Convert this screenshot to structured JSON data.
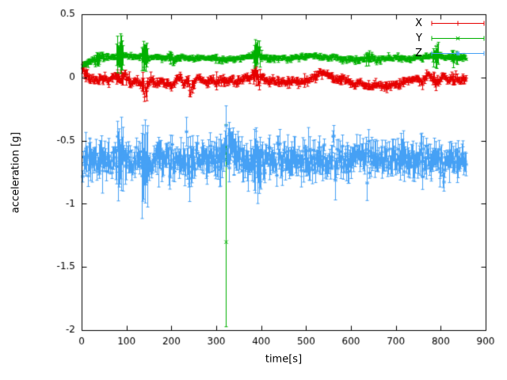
{
  "chart_data": {
    "type": "scatter",
    "style": "points-with-errorbars",
    "title": "",
    "xlabel": "time[s]",
    "ylabel": "acceleration [g]",
    "xlim": [
      0,
      900
    ],
    "ylim": [
      -2,
      0.5
    ],
    "xticks": [
      0,
      100,
      200,
      300,
      400,
      500,
      600,
      700,
      800,
      900
    ],
    "xtick_labels": [
      "0",
      "100",
      "200",
      "300",
      "400",
      "500",
      "600",
      "700",
      "800",
      "900"
    ],
    "yticks": [
      0.5,
      0,
      -0.5,
      -1,
      -1.5,
      -2
    ],
    "ytick_labels": [
      "0.5",
      "0",
      "-0.5",
      "-1",
      "-1.5",
      "-2"
    ],
    "grid": false,
    "legend_position": "top-right",
    "background": "#ffffff",
    "axis_color": "#000000",
    "sample": {
      "t_start": 2,
      "t_end": 856,
      "dt": 1.5
    },
    "series": [
      {
        "name": "X",
        "color": "#e60000",
        "marker": "plus",
        "seed": 11,
        "noise_sd": 0.012,
        "err": 0.018,
        "trend": [
          [
            0,
            0.1
          ],
          [
            6,
            0.05
          ],
          [
            12,
            0.01
          ],
          [
            20,
            -0.01
          ],
          [
            30,
            -0.02
          ],
          [
            45,
            0.0
          ],
          [
            60,
            -0.02
          ],
          [
            75,
            0.01
          ],
          [
            85,
            -0.01
          ],
          [
            95,
            0.02
          ],
          [
            105,
            -0.02
          ],
          [
            115,
            -0.04
          ],
          [
            125,
            -0.02
          ],
          [
            135,
            -0.06
          ],
          [
            140,
            -0.12
          ],
          [
            147,
            -0.05
          ],
          [
            155,
            -0.02
          ],
          [
            165,
            -0.04
          ],
          [
            175,
            -0.02
          ],
          [
            190,
            -0.04
          ],
          [
            200,
            -0.06
          ],
          [
            210,
            -0.02
          ],
          [
            218,
            0.02
          ],
          [
            226,
            -0.07
          ],
          [
            233,
            -0.02
          ],
          [
            240,
            -0.08
          ],
          [
            250,
            -0.05
          ],
          [
            258,
            0.01
          ],
          [
            268,
            -0.02
          ],
          [
            278,
            -0.04
          ],
          [
            290,
            -0.01
          ],
          [
            300,
            -0.05
          ],
          [
            308,
            -0.01
          ],
          [
            318,
            -0.03
          ],
          [
            330,
            -0.02
          ],
          [
            342,
            -0.04
          ],
          [
            355,
            -0.02
          ],
          [
            368,
            -0.01
          ],
          [
            380,
            0.02
          ],
          [
            388,
            0.05
          ],
          [
            394,
            -0.03
          ],
          [
            400,
            0.01
          ],
          [
            410,
            -0.02
          ],
          [
            425,
            -0.03
          ],
          [
            440,
            -0.02
          ],
          [
            455,
            -0.04
          ],
          [
            470,
            -0.03
          ],
          [
            485,
            -0.04
          ],
          [
            500,
            -0.03
          ],
          [
            515,
            0.0
          ],
          [
            530,
            0.03
          ],
          [
            545,
            0.04
          ],
          [
            558,
            0.0
          ],
          [
            570,
            -0.02
          ],
          [
            582,
            0.0
          ],
          [
            595,
            -0.04
          ],
          [
            608,
            -0.06
          ],
          [
            620,
            -0.04
          ],
          [
            632,
            -0.06
          ],
          [
            645,
            -0.07
          ],
          [
            658,
            -0.05
          ],
          [
            670,
            -0.06
          ],
          [
            682,
            -0.07
          ],
          [
            695,
            -0.05
          ],
          [
            708,
            -0.04
          ],
          [
            720,
            -0.03
          ],
          [
            732,
            -0.02
          ],
          [
            745,
            -0.01
          ],
          [
            758,
            -0.03
          ],
          [
            770,
            0.02
          ],
          [
            778,
            0.03
          ],
          [
            788,
            -0.06
          ],
          [
            796,
            -0.02
          ],
          [
            805,
            0.01
          ],
          [
            815,
            -0.02
          ],
          [
            825,
            -0.01
          ],
          [
            838,
            -0.02
          ],
          [
            848,
            -0.01
          ],
          [
            856,
            0.0
          ]
        ],
        "err_spikes": [
          {
            "t": 6,
            "e": 0.05
          },
          {
            "t": 85,
            "e": 0.05
          },
          {
            "t": 140,
            "e": 0.08
          },
          {
            "t": 240,
            "e": 0.05
          },
          {
            "t": 390,
            "e": 0.06
          },
          {
            "t": 788,
            "e": 0.05
          },
          {
            "t": 830,
            "e": 0.04
          }
        ],
        "outliers": []
      },
      {
        "name": "Y",
        "color": "#00b000",
        "marker": "cross",
        "seed": 22,
        "noise_sd": 0.008,
        "err": 0.013,
        "trend": [
          [
            0,
            0.1
          ],
          [
            10,
            0.11
          ],
          [
            20,
            0.13
          ],
          [
            32,
            0.15
          ],
          [
            45,
            0.17
          ],
          [
            60,
            0.16
          ],
          [
            75,
            0.17
          ],
          [
            90,
            0.18
          ],
          [
            105,
            0.17
          ],
          [
            120,
            0.16
          ],
          [
            135,
            0.17
          ],
          [
            150,
            0.16
          ],
          [
            165,
            0.17
          ],
          [
            180,
            0.16
          ],
          [
            195,
            0.16
          ],
          [
            210,
            0.15
          ],
          [
            225,
            0.16
          ],
          [
            240,
            0.16
          ],
          [
            255,
            0.15
          ],
          [
            270,
            0.16
          ],
          [
            285,
            0.15
          ],
          [
            300,
            0.15
          ],
          [
            315,
            0.14
          ],
          [
            330,
            0.15
          ],
          [
            345,
            0.15
          ],
          [
            360,
            0.16
          ],
          [
            375,
            0.17
          ],
          [
            386,
            0.19
          ],
          [
            392,
            0.2
          ],
          [
            400,
            0.17
          ],
          [
            415,
            0.15
          ],
          [
            430,
            0.15
          ],
          [
            445,
            0.16
          ],
          [
            460,
            0.15
          ],
          [
            475,
            0.16
          ],
          [
            490,
            0.16
          ],
          [
            505,
            0.17
          ],
          [
            520,
            0.17
          ],
          [
            535,
            0.16
          ],
          [
            550,
            0.16
          ],
          [
            565,
            0.16
          ],
          [
            580,
            0.15
          ],
          [
            595,
            0.15
          ],
          [
            610,
            0.14
          ],
          [
            625,
            0.15
          ],
          [
            640,
            0.15
          ],
          [
            655,
            0.15
          ],
          [
            670,
            0.15
          ],
          [
            685,
            0.16
          ],
          [
            700,
            0.16
          ],
          [
            715,
            0.15
          ],
          [
            730,
            0.15
          ],
          [
            745,
            0.16
          ],
          [
            760,
            0.16
          ],
          [
            775,
            0.17
          ],
          [
            788,
            0.18
          ],
          [
            800,
            0.17
          ],
          [
            815,
            0.16
          ],
          [
            830,
            0.16
          ],
          [
            845,
            0.16
          ],
          [
            856,
            0.16
          ]
        ],
        "err_spikes": [
          {
            "t": 35,
            "e": 0.05
          },
          {
            "t": 85,
            "e": 0.16
          },
          {
            "t": 140,
            "e": 0.12
          },
          {
            "t": 200,
            "e": 0.05
          },
          {
            "t": 390,
            "e": 0.11
          },
          {
            "t": 640,
            "e": 0.05
          },
          {
            "t": 788,
            "e": 0.09
          },
          {
            "t": 830,
            "e": 0.05
          }
        ],
        "outliers": [
          {
            "t": 322,
            "y": -1.3,
            "lo": -1.97,
            "hi": -0.37
          }
        ]
      },
      {
        "name": "Z",
        "color": "#46a1f5",
        "marker": "asterisk",
        "seed": 33,
        "noise_sd": 0.045,
        "err": 0.075,
        "trend": [
          [
            0,
            -0.66
          ],
          [
            15,
            -0.65
          ],
          [
            30,
            -0.66
          ],
          [
            50,
            -0.65
          ],
          [
            70,
            -0.66
          ],
          [
            90,
            -0.65
          ],
          [
            110,
            -0.66
          ],
          [
            130,
            -0.65
          ],
          [
            150,
            -0.66
          ],
          [
            170,
            -0.65
          ],
          [
            190,
            -0.64
          ],
          [
            210,
            -0.65
          ],
          [
            230,
            -0.66
          ],
          [
            250,
            -0.65
          ],
          [
            270,
            -0.66
          ],
          [
            290,
            -0.65
          ],
          [
            305,
            -0.63
          ],
          [
            318,
            -0.58
          ],
          [
            326,
            -0.54
          ],
          [
            334,
            -0.57
          ],
          [
            342,
            -0.62
          ],
          [
            355,
            -0.66
          ],
          [
            370,
            -0.66
          ],
          [
            385,
            -0.64
          ],
          [
            395,
            -0.67
          ],
          [
            410,
            -0.66
          ],
          [
            430,
            -0.65
          ],
          [
            450,
            -0.66
          ],
          [
            470,
            -0.65
          ],
          [
            490,
            -0.66
          ],
          [
            510,
            -0.66
          ],
          [
            530,
            -0.65
          ],
          [
            550,
            -0.66
          ],
          [
            570,
            -0.65
          ],
          [
            590,
            -0.65
          ],
          [
            610,
            -0.64
          ],
          [
            630,
            -0.64
          ],
          [
            650,
            -0.64
          ],
          [
            670,
            -0.63
          ],
          [
            690,
            -0.64
          ],
          [
            710,
            -0.64
          ],
          [
            730,
            -0.64
          ],
          [
            750,
            -0.65
          ],
          [
            770,
            -0.65
          ],
          [
            790,
            -0.65
          ],
          [
            810,
            -0.65
          ],
          [
            830,
            -0.65
          ],
          [
            845,
            -0.65
          ],
          [
            856,
            -0.65
          ]
        ],
        "err_spikes": [
          {
            "t": 12,
            "e": 0.14
          },
          {
            "t": 85,
            "e": 0.3
          },
          {
            "t": 140,
            "e": 0.34
          },
          {
            "t": 200,
            "e": 0.12
          },
          {
            "t": 240,
            "e": 0.18
          },
          {
            "t": 305,
            "e": 0.15
          },
          {
            "t": 326,
            "e": 0.16
          },
          {
            "t": 340,
            "e": 0.14
          },
          {
            "t": 390,
            "e": 0.26
          },
          {
            "t": 440,
            "e": 0.14
          },
          {
            "t": 480,
            "e": 0.12
          },
          {
            "t": 560,
            "e": 0.1
          },
          {
            "t": 640,
            "e": 0.1
          },
          {
            "t": 760,
            "e": 0.1
          },
          {
            "t": 800,
            "e": 0.12
          }
        ],
        "outliers": []
      }
    ]
  }
}
